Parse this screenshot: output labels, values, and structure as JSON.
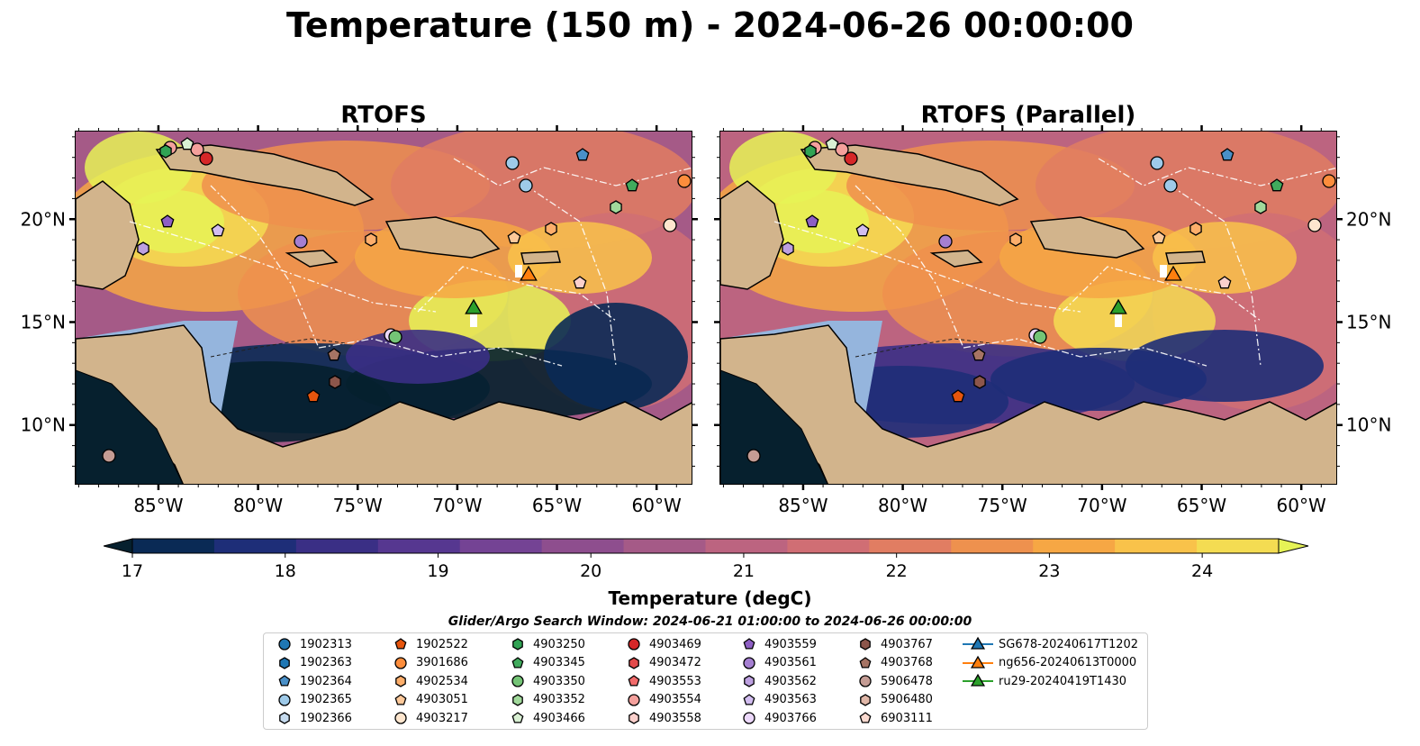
{
  "figure_title": "Temperature (150 m) - 2024-06-26 00:00:00",
  "colorbar": {
    "label": "Temperature (degC)",
    "ticks": [
      "17",
      "18",
      "19",
      "20",
      "21",
      "22",
      "23",
      "24"
    ],
    "min": 16.75,
    "max": 24.5,
    "step": 0.5,
    "colors": [
      "#06202e",
      "#0a2a55",
      "#1e2e78",
      "#3a2f85",
      "#563790",
      "#744394",
      "#8e4e8e",
      "#a55a87",
      "#bc6480",
      "#d06e74",
      "#e17d62",
      "#ee914e",
      "#f6a744",
      "#f9c24a",
      "#f4dc52",
      "#e6f356"
    ]
  },
  "search_window": "Glider/Argo Search Window: 2024-06-21 01:00:00 to 2024-06-26 00:00:00",
  "chart_data": [
    {
      "type": "heatmap",
      "title": "RTOFS",
      "x_ticks": [
        "85°W",
        "80°W",
        "75°W",
        "70°W",
        "65°W",
        "60°W"
      ],
      "y_ticks": [
        "20°N",
        "15°N",
        "10°N"
      ],
      "xlim": [
        -89.2,
        -58.2
      ],
      "ylim": [
        7.1,
        24.3
      ]
    },
    {
      "type": "heatmap",
      "title": "RTOFS (Parallel)",
      "x_ticks": [
        "85°W",
        "80°W",
        "75°W",
        "70°W",
        "65°W",
        "60°W"
      ],
      "y_ticks": [
        "20°N",
        "15°N",
        "10°N"
      ],
      "xlim": [
        -89.2,
        -58.2
      ],
      "ylim": [
        7.1,
        24.3
      ]
    }
  ],
  "legend": [
    {
      "label": "1902313",
      "marker": "circle",
      "color": "#1f77b4"
    },
    {
      "label": "1902363",
      "marker": "hexagon",
      "color": "#1f77b4"
    },
    {
      "label": "1902364",
      "marker": "pentagon",
      "color": "#4a90c8"
    },
    {
      "label": "1902365",
      "marker": "circle",
      "color": "#9ecae9"
    },
    {
      "label": "1902366",
      "marker": "hexagon",
      "color": "#c6dbef"
    },
    {
      "label": "1902522",
      "marker": "pentagon",
      "color": "#e6550d"
    },
    {
      "label": "3901686",
      "marker": "circle",
      "color": "#fd8d3c"
    },
    {
      "label": "4902534",
      "marker": "hexagon",
      "color": "#fdae6b"
    },
    {
      "label": "4903051",
      "marker": "pentagon",
      "color": "#fdc99a"
    },
    {
      "label": "4903217",
      "marker": "circle",
      "color": "#fee6ce"
    },
    {
      "label": "4903250",
      "marker": "hexagon",
      "color": "#31a354"
    },
    {
      "label": "4903345",
      "marker": "pentagon",
      "color": "#41ab5d"
    },
    {
      "label": "4903350",
      "marker": "circle",
      "color": "#74c476"
    },
    {
      "label": "4903352",
      "marker": "hexagon",
      "color": "#a1d99b"
    },
    {
      "label": "4903466",
      "marker": "pentagon",
      "color": "#d9f0d3"
    },
    {
      "label": "4903469",
      "marker": "circle",
      "color": "#d62728"
    },
    {
      "label": "4903472",
      "marker": "hexagon",
      "color": "#e34a4a"
    },
    {
      "label": "4903553",
      "marker": "pentagon",
      "color": "#f26b6b"
    },
    {
      "label": "4903554",
      "marker": "circle",
      "color": "#f4a09c"
    },
    {
      "label": "4903558",
      "marker": "hexagon",
      "color": "#fbd0cc"
    },
    {
      "label": "4903559",
      "marker": "pentagon",
      "color": "#8e5fc4"
    },
    {
      "label": "4903561",
      "marker": "circle",
      "color": "#a57fd1"
    },
    {
      "label": "4903562",
      "marker": "hexagon",
      "color": "#bda0e0"
    },
    {
      "label": "4903563",
      "marker": "pentagon",
      "color": "#d2bdf0"
    },
    {
      "label": "4903766",
      "marker": "circle",
      "color": "#ecd8fb"
    },
    {
      "label": "4903767",
      "marker": "hexagon",
      "color": "#8c564b"
    },
    {
      "label": "4903768",
      "marker": "pentagon",
      "color": "#a67464"
    },
    {
      "label": "5906478",
      "marker": "circle",
      "color": "#c49c94"
    },
    {
      "label": "5906480",
      "marker": "hexagon",
      "color": "#e0b7a8"
    },
    {
      "label": "6903111",
      "marker": "pentagon",
      "color": "#fbdad0"
    },
    {
      "label": "SG678-20240617T1202",
      "marker": "triangle-line",
      "color": "#1f77b4"
    },
    {
      "label": "ng656-20240613T0000",
      "marker": "triangle-line",
      "color": "#ff7f0e"
    },
    {
      "label": "ru29-20240419T1430",
      "marker": "triangle-line",
      "color": "#2ca02c"
    }
  ]
}
